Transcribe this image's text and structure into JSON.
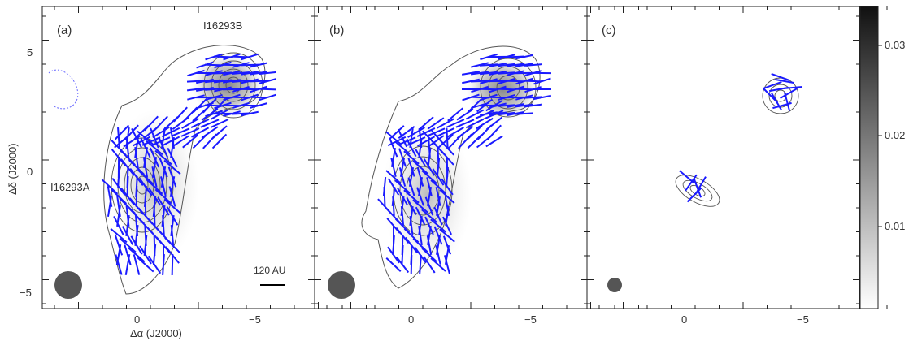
{
  "figure": {
    "panels": [
      {
        "label": "(a)",
        "source_a_label": "I16293A",
        "source_b_label": "I16293B",
        "scale_bar_label": "120 AU"
      },
      {
        "label": "(b)"
      },
      {
        "label": "(c)"
      }
    ],
    "x_axis_label": "Δα (J2000)",
    "y_axis_label": "Δδ (J2000)",
    "x_ticks": [
      "0",
      "−5"
    ],
    "y_ticks": [
      "5",
      "0",
      "−5"
    ],
    "colorbar_ticks": [
      "0.03",
      "0.02",
      "0.01"
    ],
    "colors": {
      "vectors": "#1a1aff",
      "contours": "#555555",
      "negative_contours": "#6a6aff"
    }
  }
}
